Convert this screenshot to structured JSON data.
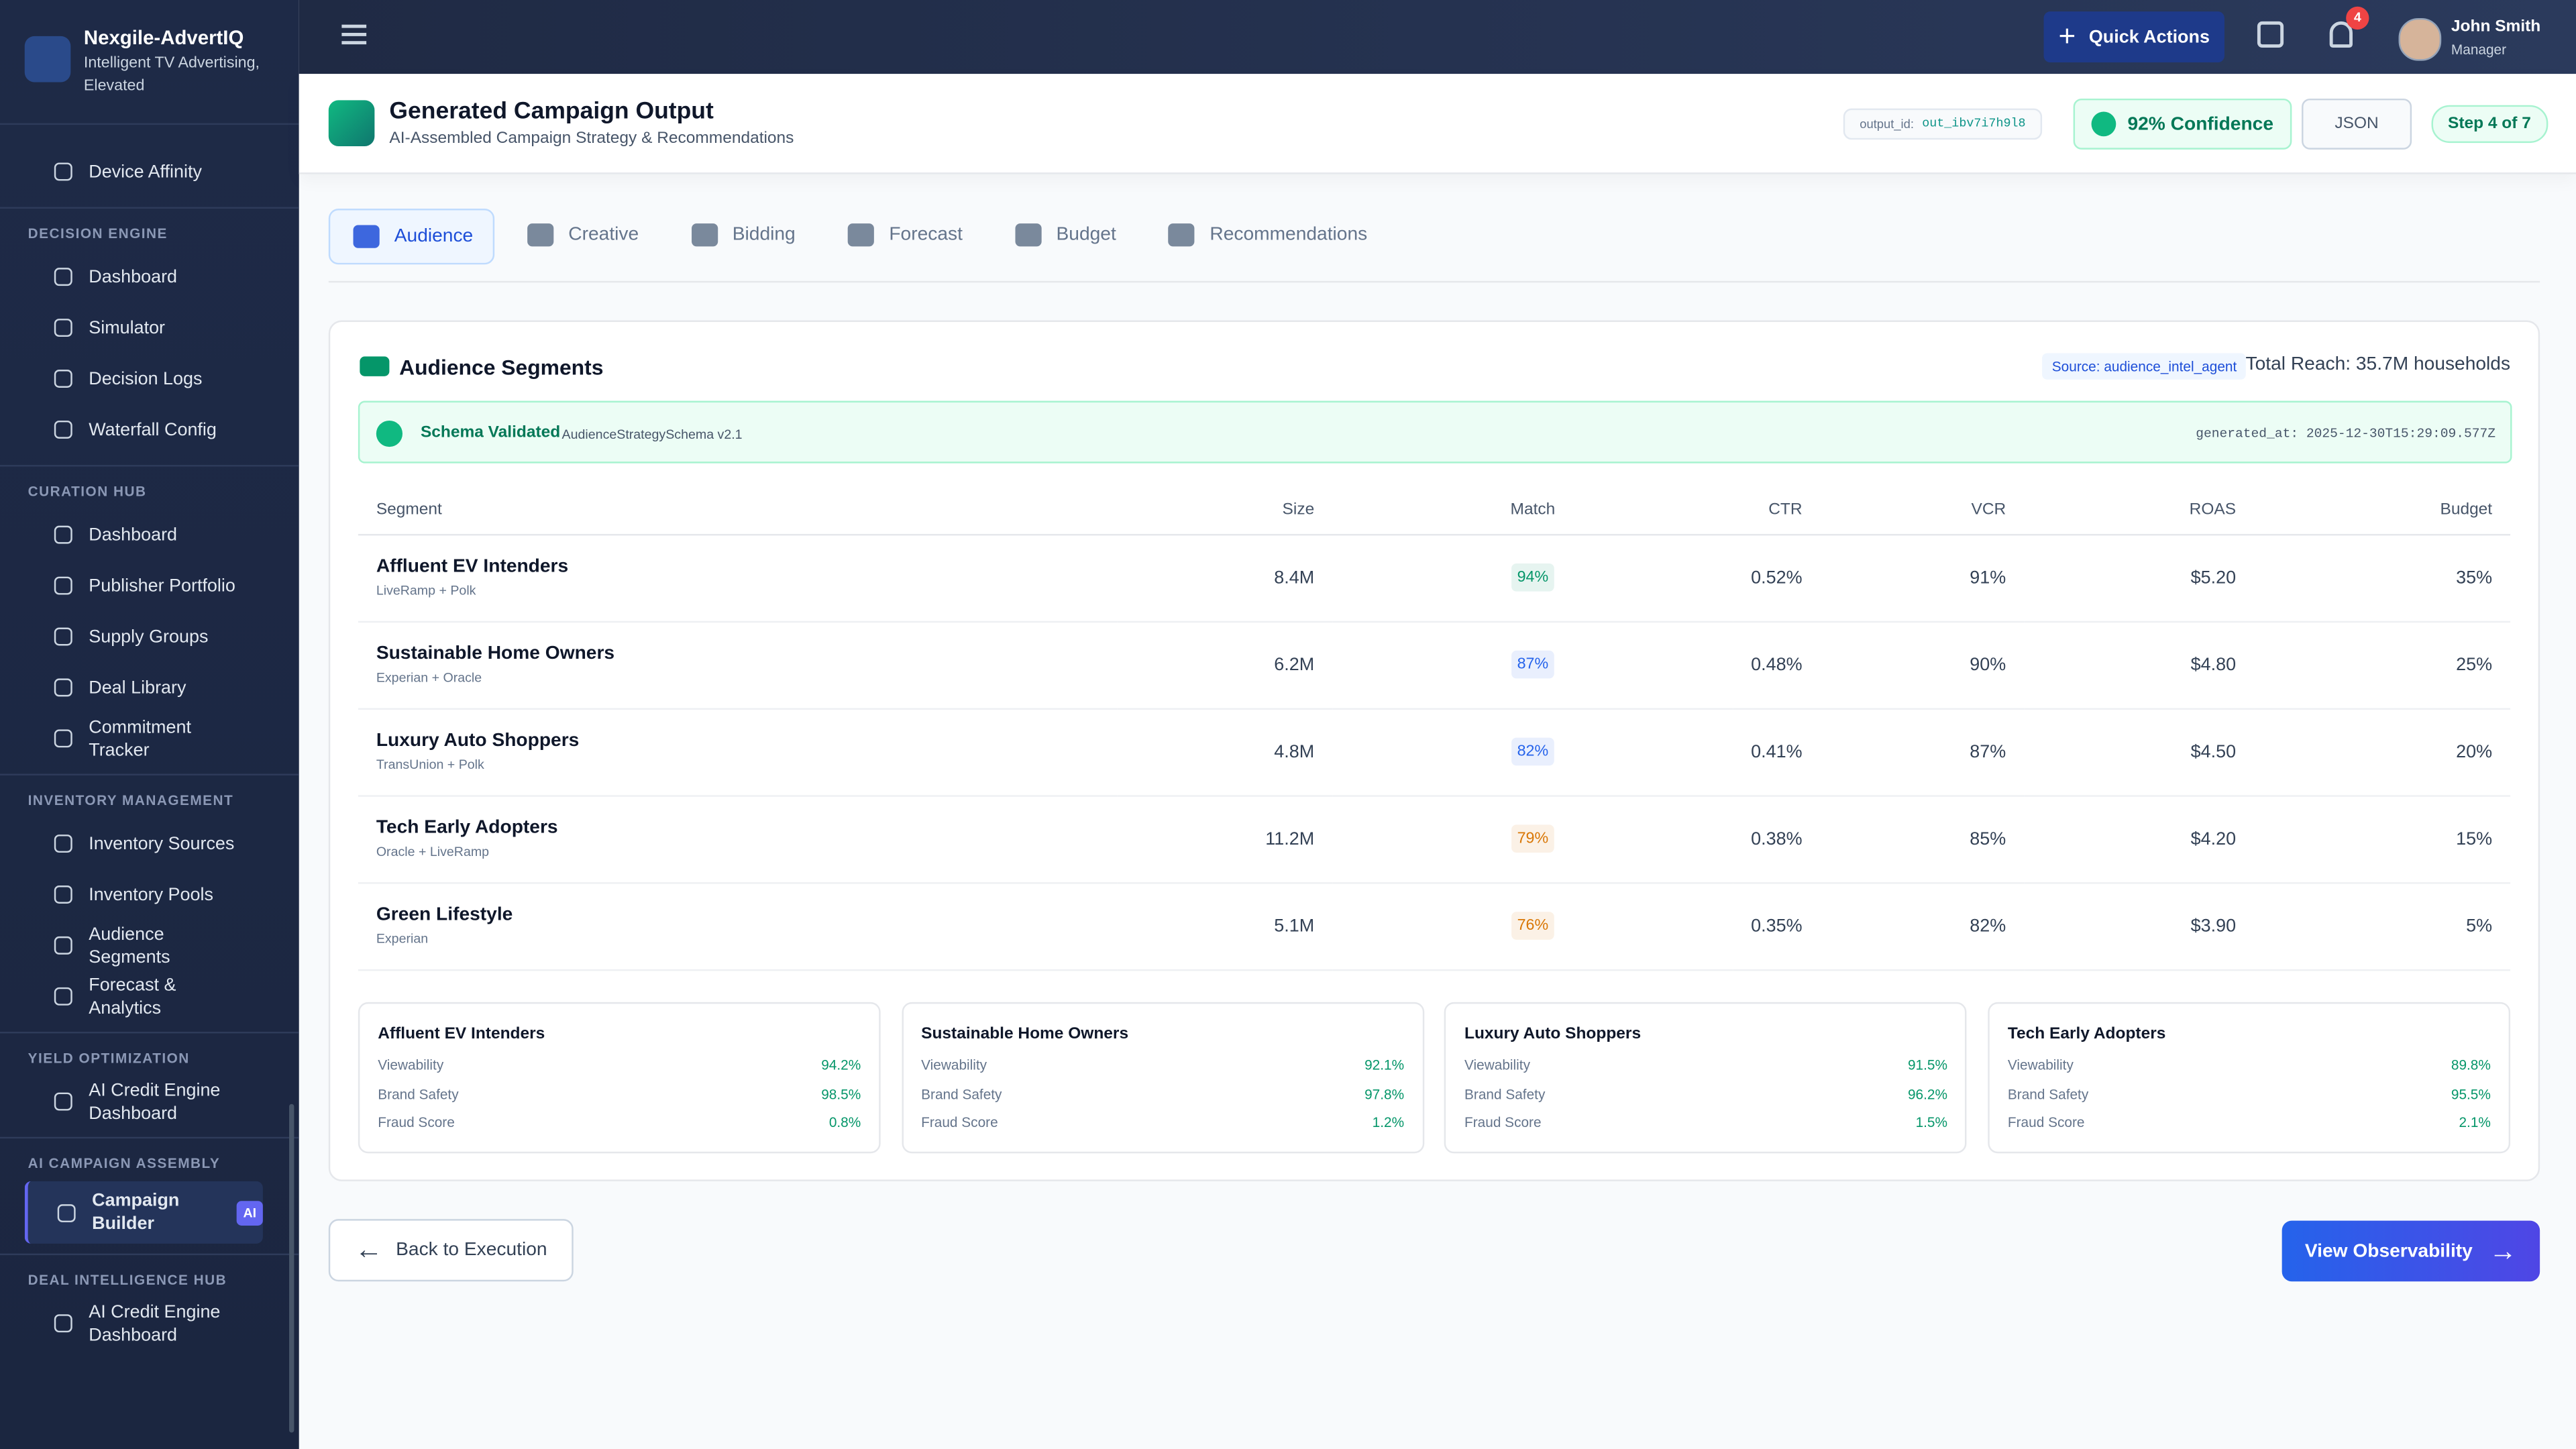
{
  "brand": {
    "name": "Nexgile-AdvertIQ",
    "tagline": "Intelligent TV Advertising, Elevated"
  },
  "sidebar": {
    "top_item": "Device Affinity",
    "sections": [
      {
        "title": "DECISION ENGINE",
        "items": [
          "Dashboard",
          "Simulator",
          "Decision Logs",
          "Waterfall Config"
        ]
      },
      {
        "title": "CURATION HUB",
        "items": [
          "Dashboard",
          "Publisher Portfolio",
          "Supply Groups",
          "Deal Library",
          "Commitment Tracker"
        ]
      },
      {
        "title": "INVENTORY MANAGEMENT",
        "items": [
          "Inventory Sources",
          "Inventory Pools",
          "Audience Segments",
          "Forecast & Analytics"
        ]
      },
      {
        "title": "YIELD OPTIMIZATION",
        "items": [
          "AI Credit Engine Dashboard"
        ]
      },
      {
        "title": "AI CAMPAIGN ASSEMBLY",
        "items": [
          "Campaign Builder"
        ],
        "badge": "AI"
      },
      {
        "title": "DEAL INTELLIGENCE HUB",
        "items": [
          "AI Credit Engine Dashboard"
        ]
      }
    ]
  },
  "header": {
    "quick_actions": "Quick Actions",
    "notifications": "4",
    "user_name": "John Smith",
    "user_role": "Manager"
  },
  "page": {
    "title": "Generated Campaign Output",
    "subtitle": "AI-Assembled Campaign Strategy & Recommendations",
    "output_id_label": "output_id:",
    "output_id": "out_ibv7i7h9l8",
    "confidence": "92% Confidence",
    "json": "JSON",
    "step": "Step 4 of 7"
  },
  "tabs": [
    "Audience",
    "Creative",
    "Bidding",
    "Forecast",
    "Budget",
    "Recommendations"
  ],
  "segments_card": {
    "title": "Audience Segments",
    "source": "Source: audience_intel_agent",
    "total_reach": "Total Reach: 35.7M households",
    "schema": {
      "status": "Schema Validated",
      "name": "AudienceStrategySchema v2.1",
      "generated_at": "generated_at: 2025-12-30T15:29:09.577Z"
    }
  },
  "table": {
    "columns": [
      "Segment",
      "Size",
      "Match",
      "CTR",
      "VCR",
      "ROAS",
      "Budget"
    ],
    "rows": [
      {
        "segment": "Affluent EV Intenders",
        "sources": "LiveRamp + Polk",
        "size": "8.4M",
        "match": "94%",
        "match_color": "#059669",
        "ctr": "0.52%",
        "vcr": "91%",
        "roas": "$5.20",
        "budget": "35%"
      },
      {
        "segment": "Sustainable Home Owners",
        "sources": "Experian + Oracle",
        "size": "6.2M",
        "match": "87%",
        "match_color": "#2563eb",
        "ctr": "0.48%",
        "vcr": "90%",
        "roas": "$4.80",
        "budget": "25%"
      },
      {
        "segment": "Luxury Auto Shoppers",
        "sources": "TransUnion + Polk",
        "size": "4.8M",
        "match": "82%",
        "match_color": "#2563eb",
        "ctr": "0.41%",
        "vcr": "87%",
        "roas": "$4.50",
        "budget": "20%"
      },
      {
        "segment": "Tech Early Adopters",
        "sources": "Oracle + LiveRamp",
        "size": "11.2M",
        "match": "79%",
        "match_color": "#d97706",
        "ctr": "0.38%",
        "vcr": "85%",
        "roas": "$4.20",
        "budget": "15%"
      },
      {
        "segment": "Green Lifestyle",
        "sources": "Experian",
        "size": "5.1M",
        "match": "76%",
        "match_color": "#d97706",
        "ctr": "0.35%",
        "vcr": "82%",
        "roas": "$3.90",
        "budget": "5%"
      }
    ]
  },
  "quality_cards": [
    {
      "title": "Affluent EV Intenders",
      "metrics": [
        {
          "label": "Viewability",
          "value": "94.2%"
        },
        {
          "label": "Brand Safety",
          "value": "98.5%"
        },
        {
          "label": "Fraud Score",
          "value": "0.8%"
        }
      ]
    },
    {
      "title": "Sustainable Home Owners",
      "metrics": [
        {
          "label": "Viewability",
          "value": "92.1%"
        },
        {
          "label": "Brand Safety",
          "value": "97.8%"
        },
        {
          "label": "Fraud Score",
          "value": "1.2%"
        }
      ]
    },
    {
      "title": "Luxury Auto Shoppers",
      "metrics": [
        {
          "label": "Viewability",
          "value": "91.5%"
        },
        {
          "label": "Brand Safety",
          "value": "96.2%"
        },
        {
          "label": "Fraud Score",
          "value": "1.5%"
        }
      ]
    },
    {
      "title": "Tech Early Adopters",
      "metrics": [
        {
          "label": "Viewability",
          "value": "89.8%"
        },
        {
          "label": "Brand Safety",
          "value": "95.5%"
        },
        {
          "label": "Fraud Score",
          "value": "2.1%"
        }
      ]
    }
  ],
  "footer": {
    "back": "Back to Execution",
    "next": "View Observability"
  }
}
